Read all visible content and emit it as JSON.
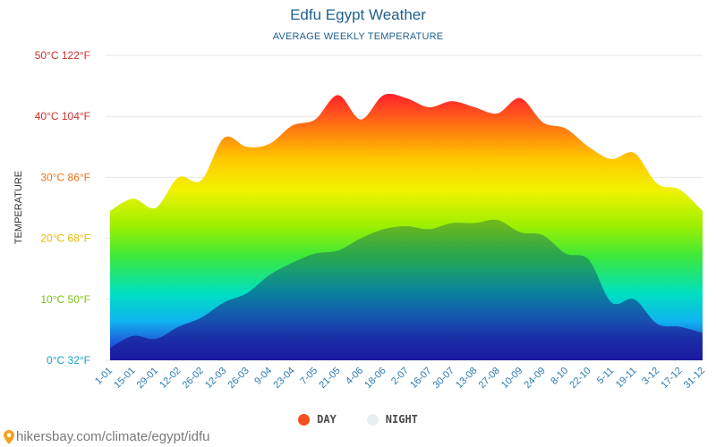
{
  "header": {
    "title": "Edfu Egypt Weather",
    "subtitle": "AVERAGE WEEKLY TEMPERATURE"
  },
  "legend": {
    "day_label": "DAY",
    "night_label": "NIGHT",
    "day_color": "#f4511e",
    "night_color": "#e8ecf3"
  },
  "footer": {
    "url": "hikersbay.com/climate/egypt/idfu"
  },
  "colors": {
    "tick_red": "#d32f2f",
    "tick_yellow": "#e6b800",
    "tick_green": "#7cc21a",
    "tick_cyan": "#1aa3c2",
    "night_top": "#2e9e4a",
    "night_bottom": "#1a237e"
  },
  "chart_data": {
    "type": "area",
    "title": "Edfu Egypt Weather",
    "subtitle": "AVERAGE WEEKLY TEMPERATURE",
    "ylabel": "TEMPERATURE",
    "xlabel": "",
    "ylim": [
      0,
      50
    ],
    "grid": true,
    "legend_position": "bottom",
    "y_ticks": [
      {
        "value": 0,
        "label": "0°C 32°F"
      },
      {
        "value": 10,
        "label": "10°C 50°F"
      },
      {
        "value": 20,
        "label": "20°C 68°F"
      },
      {
        "value": 30,
        "label": "30°C 86°F"
      },
      {
        "value": 40,
        "label": "40°C 104°F"
      },
      {
        "value": 50,
        "label": "50°C 122°F"
      }
    ],
    "categories": [
      "1-01",
      "15-01",
      "29-01",
      "12-02",
      "26-02",
      "12-03",
      "26-03",
      "9-04",
      "23-04",
      "7-05",
      "21-05",
      "4-06",
      "18-06",
      "2-07",
      "16-07",
      "30-07",
      "13-08",
      "27-08",
      "10-09",
      "24-09",
      "8-10",
      "22-10",
      "5-11",
      "19-11",
      "3-12",
      "17-12",
      "31-12"
    ],
    "series": [
      {
        "name": "DAY",
        "values": [
          24.5,
          26.5,
          25,
          30,
          29.5,
          36.5,
          35,
          35.5,
          38.5,
          39.5,
          43.5,
          39.5,
          43.5,
          43,
          41.5,
          42.5,
          41.5,
          40.5,
          43,
          39,
          38,
          35,
          33,
          34,
          29,
          28,
          24.5
        ]
      },
      {
        "name": "NIGHT",
        "values": [
          2,
          4,
          3.5,
          5.5,
          7,
          9.5,
          11,
          14,
          16,
          17.5,
          18,
          20,
          21.5,
          22,
          21.5,
          22.5,
          22.5,
          23,
          21,
          20.5,
          17.5,
          16.5,
          9.5,
          10,
          6,
          5.5,
          4.5
        ]
      }
    ]
  }
}
